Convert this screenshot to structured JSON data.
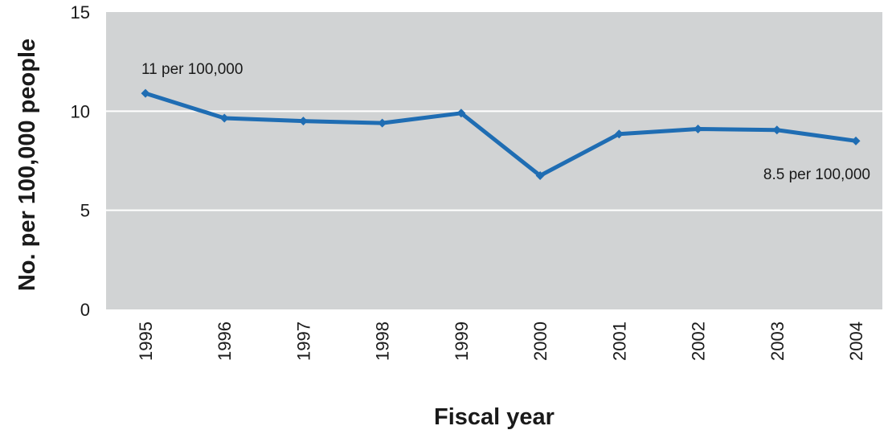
{
  "chart_data": {
    "type": "line",
    "title": "",
    "xlabel": "Fiscal year",
    "ylabel": "No. per 100,000 people",
    "x": [
      "1995",
      "1996",
      "1997",
      "1998",
      "1999",
      "2000",
      "2001",
      "2002",
      "2003",
      "2004"
    ],
    "series": [
      {
        "values": [
          10.9,
          9.65,
          9.5,
          9.4,
          9.9,
          6.75,
          8.85,
          9.1,
          9.05,
          8.5
        ]
      }
    ],
    "ylim": [
      0,
      15
    ],
    "yticks": [
      "0",
      "5",
      "10",
      "15"
    ],
    "grid": true,
    "annotations": [
      {
        "text": "11 per 100,000",
        "x": "1995"
      },
      {
        "text": "8.5 per 100,000",
        "x": "2004"
      }
    ],
    "colors": {
      "line": "#1f6db3",
      "plot_background": "#d1d3d4",
      "grid": "#ffffff"
    }
  }
}
